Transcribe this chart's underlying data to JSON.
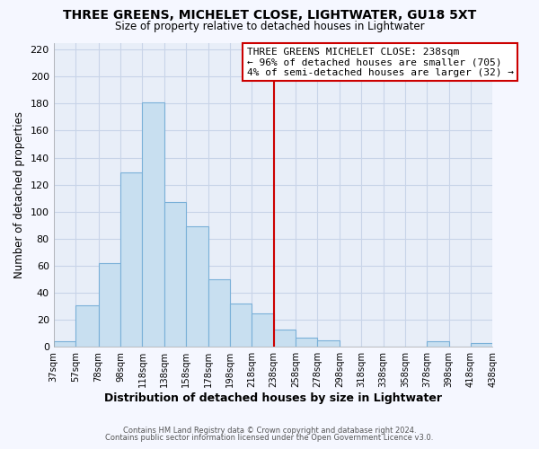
{
  "title": "THREE GREENS, MICHELET CLOSE, LIGHTWATER, GU18 5XT",
  "subtitle": "Size of property relative to detached houses in Lightwater",
  "xlabel": "Distribution of detached houses by size in Lightwater",
  "ylabel": "Number of detached properties",
  "bin_edges": [
    37,
    57,
    78,
    98,
    118,
    138,
    158,
    178,
    198,
    218,
    238,
    258,
    278,
    298,
    318,
    338,
    358,
    378,
    398,
    418,
    438
  ],
  "bar_heights": [
    4,
    31,
    62,
    129,
    181,
    107,
    89,
    50,
    32,
    25,
    13,
    7,
    5,
    0,
    0,
    0,
    0,
    4,
    0,
    3
  ],
  "bar_color": "#c8dff0",
  "bar_edgecolor": "#7ab0d8",
  "vline_x": 238,
  "vline_color": "#cc0000",
  "ylim": [
    0,
    225
  ],
  "yticks": [
    0,
    20,
    40,
    60,
    80,
    100,
    120,
    140,
    160,
    180,
    200,
    220
  ],
  "annotation_title": "THREE GREENS MICHELET CLOSE: 238sqm",
  "annotation_line1": "← 96% of detached houses are smaller (705)",
  "annotation_line2": "4% of semi-detached houses are larger (32) →",
  "annotation_box_facecolor": "#ffffff",
  "annotation_box_edgecolor": "#cc0000",
  "footnote1": "Contains HM Land Registry data © Crown copyright and database right 2024.",
  "footnote2": "Contains public sector information licensed under the Open Government Licence v3.0.",
  "plot_bg_color": "#e8eef8",
  "fig_bg_color": "#f5f7ff",
  "grid_color": "#c8d4e8",
  "tick_labels": [
    "37sqm",
    "57sqm",
    "78sqm",
    "98sqm",
    "118sqm",
    "138sqm",
    "158sqm",
    "178sqm",
    "198sqm",
    "218sqm",
    "238sqm",
    "258sqm",
    "278sqm",
    "298sqm",
    "318sqm",
    "338sqm",
    "358sqm",
    "378sqm",
    "398sqm",
    "418sqm",
    "438sqm"
  ]
}
